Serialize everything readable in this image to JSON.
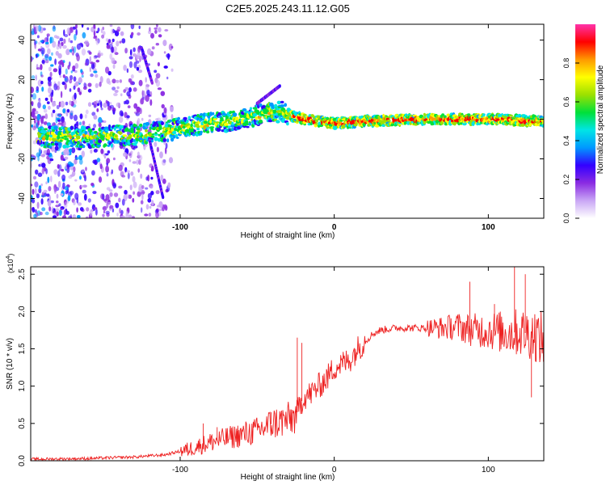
{
  "figure": {
    "title": "C2E5.2025.243.11.12.G05"
  },
  "chart_data": [
    {
      "type": "heatmap",
      "xlabel": "Height of straight line (km)",
      "ylabel": "Frequency (Hz)",
      "xlim": [
        -197,
        136
      ],
      "ylim": [
        -50,
        48
      ],
      "xticks": [
        -100,
        0,
        100
      ],
      "yticks": [
        -40,
        -20,
        0,
        20,
        40
      ],
      "colorbar": {
        "label": "Normalized spectral amplitude",
        "range": [
          0,
          1
        ],
        "ticks": [
          "0.0",
          "0.2",
          "0.4",
          "0.6",
          "0.8"
        ],
        "colormap": [
          "#ffffff",
          "#c9a6f5",
          "#8a2be2",
          "#3300ff",
          "#0099ff",
          "#00e5e5",
          "#00e03a",
          "#9be000",
          "#ffff00",
          "#ff9900",
          "#ff0000",
          "#ff33aa"
        ]
      },
      "ridge": [
        {
          "x": -185,
          "f": -9
        },
        {
          "x": -160,
          "f": -9
        },
        {
          "x": -130,
          "f": -8
        },
        {
          "x": -110,
          "f": -6
        },
        {
          "x": -90,
          "f": -3
        },
        {
          "x": -70,
          "f": -1
        },
        {
          "x": -50,
          "f": 2
        },
        {
          "x": -35,
          "f": 4
        },
        {
          "x": -28,
          "f": 2
        },
        {
          "x": -20,
          "f": 0
        },
        {
          "x": 0,
          "f": -2
        },
        {
          "x": 20,
          "f": -1
        },
        {
          "x": 60,
          "f": 0
        },
        {
          "x": 100,
          "f": 0
        },
        {
          "x": 136,
          "f": -1
        }
      ],
      "streaks": [
        {
          "x": [
            -125,
            -118
          ],
          "f": [
            36,
            18
          ]
        },
        {
          "x": [
            -120,
            -111
          ],
          "f": [
            -10,
            -40
          ]
        },
        {
          "x": [
            -50,
            -35
          ],
          "f": [
            8,
            17
          ]
        }
      ],
      "noise_region_x": [
        -197,
        -105
      ]
    },
    {
      "type": "line",
      "xlabel": "Height of straight line (km)",
      "ylabel": "SNR (10 * v/v)",
      "multiplier": "(x10",
      "multiplier_exp": "4",
      "xlim": [
        -197,
        136
      ],
      "ylim": [
        0,
        2.6
      ],
      "xticks": [
        -100,
        0,
        100
      ],
      "yticks": [
        "0.0",
        "0.5",
        "1.0",
        "1.5",
        "2.0",
        "2.5"
      ],
      "color": "#ee2222",
      "series": [
        {
          "x": [
            -197,
            -160,
            -130,
            -110,
            -95,
            -80,
            -70,
            -60,
            -50,
            -40,
            -30,
            -25,
            -20,
            -15,
            -10,
            -5,
            0,
            5,
            10,
            15,
            20,
            25,
            30,
            40,
            50,
            60,
            70,
            80,
            90,
            100,
            110,
            120,
            130,
            136
          ],
          "y": [
            0.02,
            0.03,
            0.05,
            0.08,
            0.15,
            0.25,
            0.3,
            0.35,
            0.4,
            0.5,
            0.55,
            0.6,
            0.85,
            0.9,
            1.0,
            1.1,
            1.25,
            1.3,
            1.35,
            1.5,
            1.6,
            1.7,
            1.75,
            1.78,
            1.78,
            1.78,
            1.78,
            1.8,
            1.75,
            1.75,
            1.72,
            1.72,
            1.7,
            1.6
          ]
        }
      ],
      "spikes": [
        {
          "x": -85,
          "y": 0.5
        },
        {
          "x": -76,
          "y": 0.45
        },
        {
          "x": -63,
          "y": 0.4
        },
        {
          "x": -41,
          "y": 0.65
        },
        {
          "x": -24,
          "y": 1.65
        },
        {
          "x": -21,
          "y": 1.58
        },
        {
          "x": 88,
          "y": 2.4
        },
        {
          "x": 104,
          "y": 2.1
        },
        {
          "x": 117,
          "y": 2.6
        },
        {
          "x": 124,
          "y": 2.5
        },
        {
          "x": 128,
          "y": 0.85
        }
      ]
    }
  ]
}
